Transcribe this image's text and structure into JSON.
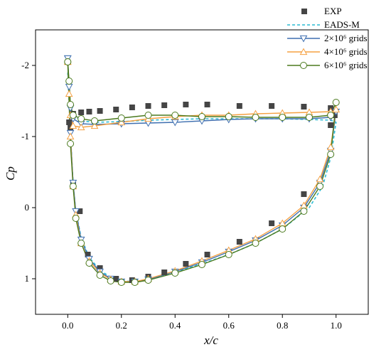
{
  "chart_data": {
    "type": "line",
    "xlabel": "x/c",
    "ylabel": "Cp",
    "xlim": [
      -0.12,
      1.12
    ],
    "ylim": [
      -2.5,
      1.5
    ],
    "invert_y": true,
    "x_ticks": [
      0.0,
      0.2,
      0.4,
      0.6,
      0.8,
      1.0
    ],
    "x_tick_labels": [
      "0.0",
      "0.2",
      "0.4",
      "0.6",
      "0.8",
      "1.0"
    ],
    "y_ticks": [
      1,
      0,
      -1,
      -2
    ],
    "y_tick_labels": [
      "1",
      "0",
      "-1",
      "-2"
    ],
    "legend_position": "top-right",
    "series": [
      {
        "name": "EXP",
        "style": "markers",
        "marker": "square",
        "color": "#454545",
        "x": [
          0.01,
          0.02,
          0.045,
          0.075,
          0.12,
          0.18,
          0.24,
          0.3,
          0.36,
          0.44,
          0.52,
          0.64,
          0.76,
          0.88,
          0.98,
          0.995,
          0.005,
          0.02,
          0.05,
          0.08,
          0.12,
          0.18,
          0.24,
          0.3,
          0.36,
          0.44,
          0.52,
          0.64,
          0.76,
          0.88,
          0.98
        ],
        "y": [
          -1.12,
          -0.32,
          0.05,
          0.66,
          0.85,
          1.0,
          1.02,
          0.97,
          0.91,
          0.79,
          0.66,
          0.48,
          0.22,
          -0.19,
          -1.16,
          -1.3,
          -1.2,
          -1.32,
          -1.34,
          -1.35,
          -1.36,
          -1.38,
          -1.41,
          -1.43,
          -1.44,
          -1.45,
          -1.45,
          -1.43,
          -1.43,
          -1.42,
          -1.4
        ]
      },
      {
        "name": "EADS-M",
        "style": "dash",
        "color": "#2bbcd4",
        "x": [
          0.0,
          0.01,
          0.02,
          0.03,
          0.05,
          0.08,
          0.12,
          0.16,
          0.2,
          0.25,
          0.3,
          0.4,
          0.5,
          0.6,
          0.7,
          0.8,
          0.9,
          0.95,
          0.98,
          1.0,
          0.98,
          0.9,
          0.8,
          0.7,
          0.6,
          0.5,
          0.4,
          0.3,
          0.2,
          0.1,
          0.05,
          0.02,
          0.01,
          0.005,
          0.0
        ],
        "y": [
          -1.9,
          -1.05,
          -0.35,
          0.05,
          0.42,
          0.7,
          0.88,
          0.98,
          1.03,
          1.04,
          1.02,
          0.91,
          0.79,
          0.66,
          0.5,
          0.3,
          0.0,
          -0.3,
          -0.7,
          -1.2,
          -1.23,
          -1.24,
          -1.25,
          -1.25,
          -1.25,
          -1.25,
          -1.24,
          -1.23,
          -1.21,
          -1.2,
          -1.22,
          -1.3,
          -1.45,
          -1.7,
          -1.9
        ]
      },
      {
        "name": "2×10⁶ grids",
        "style": "line-marker",
        "marker": "triangle-down",
        "color": "#3e6fb0",
        "x": [
          0.0,
          0.01,
          0.02,
          0.03,
          0.05,
          0.08,
          0.12,
          0.16,
          0.2,
          0.25,
          0.3,
          0.4,
          0.5,
          0.6,
          0.7,
          0.8,
          0.88,
          0.94,
          0.98,
          1.0,
          0.98,
          0.9,
          0.8,
          0.7,
          0.6,
          0.5,
          0.4,
          0.3,
          0.2,
          0.1,
          0.05,
          0.02,
          0.01,
          0.005,
          0.0
        ],
        "y": [
          -2.1,
          -1.05,
          -0.35,
          0.05,
          0.45,
          0.72,
          0.9,
          1.0,
          1.04,
          1.04,
          1.01,
          0.9,
          0.77,
          0.62,
          0.46,
          0.25,
          0.0,
          -0.35,
          -0.8,
          -1.35,
          -1.27,
          -1.25,
          -1.25,
          -1.25,
          -1.24,
          -1.22,
          -1.2,
          -1.19,
          -1.18,
          -1.17,
          -1.18,
          -1.25,
          -1.4,
          -1.7,
          -2.1
        ]
      },
      {
        "name": "4×10⁶ grids",
        "style": "line-marker",
        "marker": "triangle-up",
        "color": "#f5a142",
        "x": [
          0.0,
          0.01,
          0.02,
          0.03,
          0.05,
          0.08,
          0.12,
          0.16,
          0.2,
          0.25,
          0.3,
          0.4,
          0.5,
          0.6,
          0.7,
          0.8,
          0.88,
          0.94,
          0.98,
          1.0,
          0.98,
          0.9,
          0.8,
          0.7,
          0.6,
          0.5,
          0.4,
          0.3,
          0.2,
          0.1,
          0.05,
          0.02,
          0.01,
          0.005,
          0.0
        ],
        "y": [
          -2.05,
          -1.0,
          -0.3,
          0.1,
          0.5,
          0.75,
          0.92,
          1.01,
          1.04,
          1.04,
          1.0,
          0.89,
          0.75,
          0.6,
          0.44,
          0.22,
          -0.03,
          -0.4,
          -0.85,
          -1.38,
          -1.35,
          -1.34,
          -1.33,
          -1.32,
          -1.3,
          -1.3,
          -1.28,
          -1.25,
          -1.2,
          -1.15,
          -1.13,
          -1.15,
          -1.3,
          -1.6,
          -2.05
        ]
      },
      {
        "name": "6×10⁶ grids",
        "style": "line-marker",
        "marker": "circle",
        "color": "#4b7a1e",
        "x": [
          0.0,
          0.01,
          0.02,
          0.03,
          0.05,
          0.08,
          0.12,
          0.16,
          0.2,
          0.25,
          0.3,
          0.4,
          0.5,
          0.6,
          0.7,
          0.8,
          0.88,
          0.94,
          0.98,
          1.0,
          0.98,
          0.9,
          0.8,
          0.7,
          0.6,
          0.5,
          0.4,
          0.3,
          0.2,
          0.1,
          0.05,
          0.02,
          0.01,
          0.005,
          0.0
        ],
        "y": [
          -2.05,
          -0.9,
          -0.3,
          0.15,
          0.5,
          0.78,
          0.95,
          1.03,
          1.05,
          1.05,
          1.02,
          0.92,
          0.8,
          0.66,
          0.5,
          0.3,
          0.05,
          -0.3,
          -0.75,
          -1.48,
          -1.3,
          -1.27,
          -1.27,
          -1.27,
          -1.28,
          -1.28,
          -1.3,
          -1.3,
          -1.26,
          -1.22,
          -1.25,
          -1.3,
          -1.45,
          -1.78,
          -2.05
        ]
      }
    ]
  }
}
